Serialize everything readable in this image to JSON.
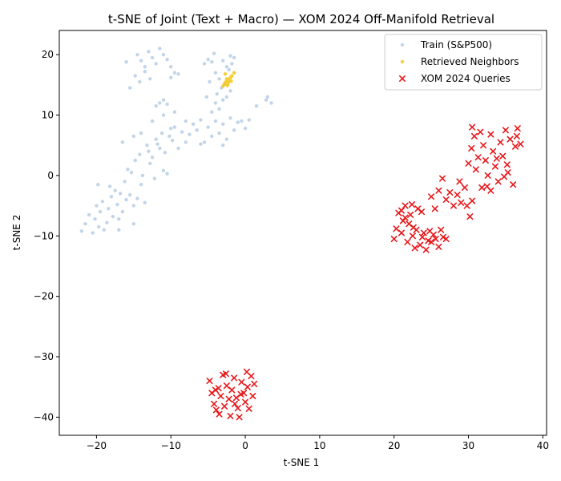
{
  "chart_data": {
    "type": "scatter",
    "title": "t-SNE of Joint (Text + Macro) — XOM 2024 Off-Manifold Retrieval",
    "xlabel": "t-SNE 1",
    "ylabel": "t-SNE 2",
    "xlim": [
      -25,
      40.5
    ],
    "ylim": [
      -43,
      24
    ],
    "xticks": [
      -20,
      -10,
      0,
      10,
      20,
      30,
      40
    ],
    "yticks": [
      -40,
      -30,
      -20,
      -10,
      0,
      10,
      20
    ],
    "xtick_labels": [
      "−20",
      "−10",
      "0",
      "10",
      "20",
      "30",
      "40"
    ],
    "ytick_labels": [
      "−40",
      "−30",
      "−20",
      "−10",
      "0",
      "10",
      "20"
    ],
    "grid": false,
    "legend_position": "top-right",
    "series": [
      {
        "name": "Train (S&P500)",
        "marker": "circle",
        "color": "#8fb3d6",
        "points": [
          [
            -22.0,
            -9.2
          ],
          [
            -21.5,
            -8.0
          ],
          [
            -21.0,
            -6.5
          ],
          [
            -20.5,
            -9.5
          ],
          [
            -20.2,
            -7.2
          ],
          [
            -20.0,
            -5.0
          ],
          [
            -19.7,
            -8.5
          ],
          [
            -19.5,
            -6.0
          ],
          [
            -19.2,
            -4.3
          ],
          [
            -19.0,
            -9.0
          ],
          [
            -18.6,
            -7.8
          ],
          [
            -18.4,
            -5.5
          ],
          [
            -18.0,
            -3.5
          ],
          [
            -17.8,
            -6.8
          ],
          [
            -17.5,
            -2.5
          ],
          [
            -17.2,
            -4.8
          ],
          [
            -17.0,
            -7.2
          ],
          [
            -16.8,
            -3.0
          ],
          [
            -16.5,
            -6.0
          ],
          [
            -16.2,
            -1.0
          ],
          [
            -16.0,
            -4.0
          ],
          [
            -15.8,
            1.0
          ],
          [
            -15.5,
            -3.2
          ],
          [
            -15.3,
            0.5
          ],
          [
            -15.0,
            -5.0
          ],
          [
            -14.8,
            2.5
          ],
          [
            -14.5,
            -3.8
          ],
          [
            -14.2,
            3.5
          ],
          [
            -14.0,
            -1.5
          ],
          [
            -13.8,
            0.0
          ],
          [
            -13.5,
            -4.5
          ],
          [
            -13.2,
            5.0
          ],
          [
            -13.0,
            4.0
          ],
          [
            -12.8,
            2.0
          ],
          [
            -12.5,
            3.0
          ],
          [
            -12.2,
            -0.5
          ],
          [
            -12.0,
            6.0
          ],
          [
            -11.8,
            5.2
          ],
          [
            -11.5,
            4.5
          ],
          [
            -11.2,
            7.0
          ],
          [
            -11.0,
            0.8
          ],
          [
            -10.8,
            3.8
          ],
          [
            -10.5,
            0.3
          ],
          [
            -10.2,
            6.5
          ],
          [
            -10.0,
            7.8
          ],
          [
            -9.8,
            5.8
          ],
          [
            -9.5,
            8.0
          ],
          [
            -9.0,
            4.5
          ],
          [
            -8.5,
            7.2
          ],
          [
            -8.0,
            9.0
          ],
          [
            -7.5,
            6.8
          ],
          [
            -7.0,
            8.5
          ],
          [
            -6.5,
            7.5
          ],
          [
            -6.0,
            9.2
          ],
          [
            -5.5,
            5.5
          ],
          [
            -5.0,
            8.0
          ],
          [
            -4.5,
            6.5
          ],
          [
            -4.0,
            9.0
          ],
          [
            -3.5,
            7.0
          ],
          [
            -3.0,
            8.5
          ],
          [
            -2.5,
            6.0
          ],
          [
            -2.0,
            9.5
          ],
          [
            -1.5,
            7.5
          ],
          [
            -1.0,
            8.8
          ],
          [
            -0.5,
            9.0
          ],
          [
            0.0,
            7.8
          ],
          [
            0.5,
            9.2
          ],
          [
            -3.0,
            5.0
          ],
          [
            -6.0,
            5.2
          ],
          [
            -8.0,
            5.5
          ],
          [
            -4.5,
            10.5
          ],
          [
            -4.0,
            12.0
          ],
          [
            -3.8,
            13.5
          ],
          [
            -3.5,
            11.0
          ],
          [
            -3.2,
            14.5
          ],
          [
            -3.0,
            12.5
          ],
          [
            -2.8,
            15.0
          ],
          [
            -2.5,
            13.0
          ],
          [
            -2.2,
            17.5
          ],
          [
            -2.0,
            14.0
          ],
          [
            -1.8,
            18.5
          ],
          [
            -1.5,
            19.5
          ],
          [
            -2.0,
            19.8
          ],
          [
            -4.5,
            18.8
          ],
          [
            -5.0,
            19.2
          ],
          [
            -5.5,
            18.5
          ],
          [
            -4.0,
            17.0
          ],
          [
            -3.5,
            16.0
          ],
          [
            -4.8,
            15.5
          ],
          [
            -5.2,
            13.0
          ],
          [
            -4.2,
            20.2
          ],
          [
            -3.0,
            19.0
          ],
          [
            -2.5,
            18.0
          ],
          [
            -14.5,
            20.0
          ],
          [
            -14.0,
            19.0
          ],
          [
            -13.5,
            18.0
          ],
          [
            -13.0,
            20.5
          ],
          [
            -12.5,
            19.5
          ],
          [
            -12.0,
            18.5
          ],
          [
            -11.5,
            21.0
          ],
          [
            -11.0,
            20.0
          ],
          [
            -10.5,
            19.2
          ],
          [
            -10.0,
            18.0
          ],
          [
            -9.5,
            17.0
          ],
          [
            -14.8,
            16.5
          ],
          [
            -14.2,
            15.5
          ],
          [
            -15.5,
            14.5
          ],
          [
            -16.0,
            18.8
          ],
          [
            -13.5,
            17.2
          ],
          [
            -12.8,
            16.0
          ],
          [
            -12.0,
            11.5
          ],
          [
            -11.5,
            12.0
          ],
          [
            -11.0,
            12.5
          ],
          [
            -10.5,
            11.8
          ],
          [
            -10.0,
            16.2
          ],
          [
            -9.0,
            16.8
          ],
          [
            1.5,
            11.5
          ],
          [
            3.0,
            13.0
          ],
          [
            3.5,
            12.0
          ],
          [
            2.8,
            12.5
          ],
          [
            -15.0,
            -8.0
          ],
          [
            -17.0,
            -9.0
          ],
          [
            -18.2,
            -1.8
          ],
          [
            -19.8,
            -1.5
          ],
          [
            -16.5,
            5.5
          ],
          [
            -15.0,
            6.5
          ],
          [
            -14.0,
            7.0
          ],
          [
            -12.5,
            9.0
          ],
          [
            -11.0,
            10.0
          ],
          [
            -9.5,
            10.5
          ]
        ]
      },
      {
        "name": "Retrieved Neighbors",
        "marker": "circle",
        "color": "#f5c518",
        "points": [
          [
            -3.0,
            14.8
          ],
          [
            -2.8,
            15.2
          ],
          [
            -2.6,
            15.5
          ],
          [
            -2.5,
            16.0
          ],
          [
            -2.3,
            15.3
          ],
          [
            -2.2,
            15.8
          ],
          [
            -2.0,
            16.2
          ],
          [
            -1.8,
            16.5
          ],
          [
            -1.5,
            17.0
          ],
          [
            -2.7,
            16.8
          ],
          [
            -2.4,
            14.9
          ],
          [
            -1.9,
            15.6
          ]
        ]
      },
      {
        "name": "XOM 2024 Queries",
        "marker": "x",
        "color": "#e8191c",
        "points": [
          [
            20.0,
            -10.5
          ],
          [
            20.3,
            -8.8
          ],
          [
            20.6,
            -6.2
          ],
          [
            21.0,
            -9.5
          ],
          [
            21.2,
            -7.5
          ],
          [
            21.5,
            -5.0
          ],
          [
            21.8,
            -11.0
          ],
          [
            22.0,
            -8.0
          ],
          [
            22.2,
            -6.5
          ],
          [
            22.5,
            -10.0
          ],
          [
            22.8,
            -12.0
          ],
          [
            23.0,
            -9.0
          ],
          [
            23.2,
            -5.5
          ],
          [
            23.5,
            -11.5
          ],
          [
            23.8,
            -10.2
          ],
          [
            24.0,
            -9.5
          ],
          [
            24.3,
            -12.3
          ],
          [
            24.6,
            -10.8
          ],
          [
            25.0,
            -11.0
          ],
          [
            25.3,
            -9.8
          ],
          [
            25.6,
            -10.5
          ],
          [
            26.0,
            -11.8
          ],
          [
            26.3,
            -9.0
          ],
          [
            26.6,
            -10.2
          ],
          [
            27.0,
            -10.5
          ],
          [
            21.5,
            -7.0
          ],
          [
            22.6,
            -8.6
          ],
          [
            23.7,
            -6.0
          ],
          [
            24.8,
            -9.2
          ],
          [
            21.0,
            -5.8
          ],
          [
            22.4,
            -4.8
          ],
          [
            25.0,
            -3.5
          ],
          [
            25.5,
            -5.5
          ],
          [
            26.0,
            -2.5
          ],
          [
            26.5,
            -0.5
          ],
          [
            27.0,
            -4.0
          ],
          [
            27.5,
            -2.8
          ],
          [
            28.0,
            -5.0
          ],
          [
            28.5,
            -3.2
          ],
          [
            28.8,
            -1.0
          ],
          [
            29.0,
            -4.5
          ],
          [
            29.5,
            -2.0
          ],
          [
            29.8,
            -5.0
          ],
          [
            30.2,
            -6.8
          ],
          [
            30.5,
            -4.2
          ],
          [
            30.0,
            2.0
          ],
          [
            30.4,
            4.5
          ],
          [
            30.8,
            6.5
          ],
          [
            31.0,
            1.0
          ],
          [
            31.3,
            3.0
          ],
          [
            31.6,
            7.2
          ],
          [
            32.0,
            5.0
          ],
          [
            32.3,
            2.5
          ],
          [
            32.6,
            0.0
          ],
          [
            33.0,
            6.8
          ],
          [
            33.3,
            4.0
          ],
          [
            33.6,
            1.5
          ],
          [
            34.0,
            -1.0
          ],
          [
            34.3,
            5.5
          ],
          [
            34.6,
            3.2
          ],
          [
            35.0,
            7.5
          ],
          [
            35.3,
            0.5
          ],
          [
            35.6,
            6.0
          ],
          [
            36.0,
            -1.5
          ],
          [
            36.3,
            4.8
          ],
          [
            36.6,
            7.8
          ],
          [
            37.0,
            5.2
          ],
          [
            33.0,
            -2.5
          ],
          [
            31.8,
            -2.0
          ],
          [
            30.5,
            8.0
          ],
          [
            32.5,
            -1.8
          ],
          [
            33.8,
            2.8
          ],
          [
            35.2,
            1.8
          ],
          [
            36.5,
            6.5
          ],
          [
            34.8,
            -0.2
          ],
          [
            -4.8,
            -34.0
          ],
          [
            -4.5,
            -36.0
          ],
          [
            -4.2,
            -37.8
          ],
          [
            -3.9,
            -38.8
          ],
          [
            -3.6,
            -35.2
          ],
          [
            -3.3,
            -36.5
          ],
          [
            -3.0,
            -33.0
          ],
          [
            -2.8,
            -38.2
          ],
          [
            -2.5,
            -34.8
          ],
          [
            -2.2,
            -37.0
          ],
          [
            -2.0,
            -39.8
          ],
          [
            -1.8,
            -35.5
          ],
          [
            -1.5,
            -33.5
          ],
          [
            -1.2,
            -36.8
          ],
          [
            -1.0,
            -38.5
          ],
          [
            -0.8,
            -40.0
          ],
          [
            -0.5,
            -34.2
          ],
          [
            -0.2,
            -36.0
          ],
          [
            0.0,
            -37.5
          ],
          [
            0.3,
            -35.0
          ],
          [
            0.5,
            -38.6
          ],
          [
            0.8,
            -33.2
          ],
          [
            1.0,
            -36.5
          ],
          [
            1.2,
            -34.5
          ],
          [
            -3.5,
            -39.5
          ],
          [
            -2.6,
            -32.8
          ],
          [
            -1.4,
            -37.8
          ],
          [
            0.2,
            -32.5
          ],
          [
            -4.0,
            -35.5
          ],
          [
            -0.6,
            -36.2
          ]
        ]
      }
    ]
  }
}
